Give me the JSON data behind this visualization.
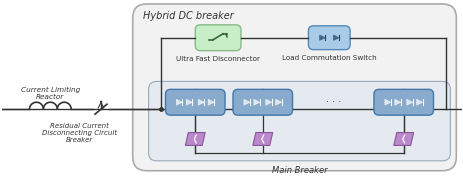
{
  "title": "Hybrid DC breaker",
  "main_breaker_label": "Main Breaker",
  "ufd_label": "Ultra Fast Disconnector",
  "lcs_label": "Load Commutation Switch",
  "clr_label": "Current Limiting\nReactor",
  "rcdb_label": "Residual Current\nDisconnecting Circuit\nBreaker",
  "outer_box_fill": "#f2f2f2",
  "outer_box_edge": "#aaaaaa",
  "inner_box_fill": "#e4eaf0",
  "inner_box_edge": "#99aabb",
  "ufd_fill": "#c8eec8",
  "ufd_edge": "#88bb88",
  "lcs_fill": "#a8cce8",
  "lcs_edge": "#5588bb",
  "module_fill": "#88aacc",
  "module_edge": "#4477aa",
  "arrester_fill": "#bb88cc",
  "arrester_edge": "#885599",
  "wire_color": "#333333",
  "font_color": "#333333",
  "dot_color": "#333333",
  "white": "#ffffff"
}
